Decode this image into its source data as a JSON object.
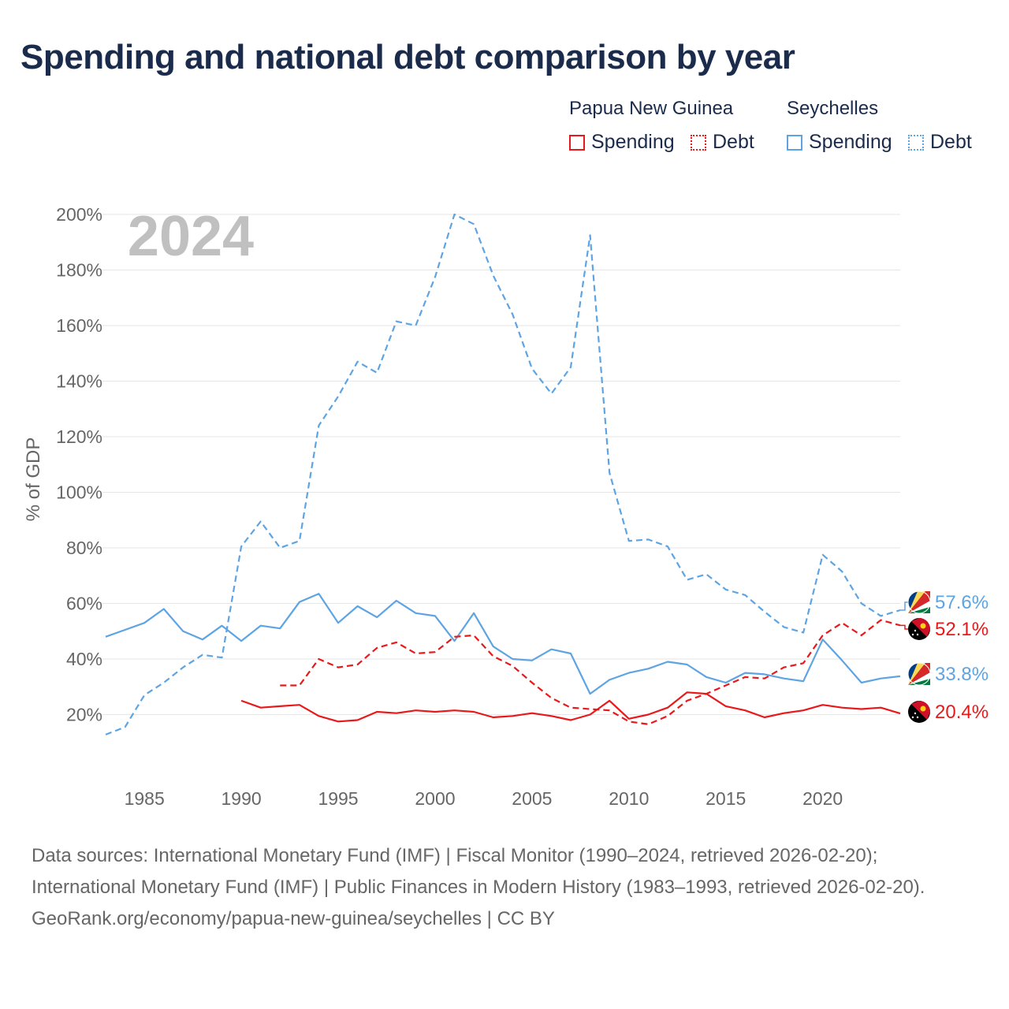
{
  "title": "Spending and national debt comparison by year",
  "legend": {
    "groups": [
      {
        "name": "Papua New Guinea",
        "color": "#e8191a",
        "items": [
          {
            "label": "Spending",
            "style": "solid"
          },
          {
            "label": "Debt",
            "style": "dotted"
          }
        ]
      },
      {
        "name": "Seychelles",
        "color": "#5ea4e3",
        "items": [
          {
            "label": "Spending",
            "style": "solid"
          },
          {
            "label": "Debt",
            "style": "dotted"
          }
        ]
      }
    ]
  },
  "year_label": "2024",
  "footer": {
    "sources": "Data sources: International Monetary Fund (IMF) | Fiscal Monitor (1990–2024, retrieved 2026-02-20); International Monetary Fund (IMF) | Public Finances in Modern History (1983–1993, retrieved 2026-02-20).",
    "attribution": "GeoRank.org/economy/papua-new-guinea/seychelles | CC BY"
  },
  "chart_data": {
    "type": "line",
    "title": "Spending and national debt comparison by year",
    "xlabel": "",
    "ylabel": "% of GDP",
    "xlim": [
      1983,
      2024
    ],
    "ylim": [
      0,
      200
    ],
    "x_ticks": [
      1985,
      1990,
      1995,
      2000,
      2005,
      2010,
      2015,
      2020
    ],
    "y_ticks": [
      20,
      40,
      60,
      80,
      100,
      120,
      140,
      160,
      180,
      200
    ],
    "y_tick_labels": [
      "20%",
      "40%",
      "60%",
      "80%",
      "100%",
      "120%",
      "140%",
      "160%",
      "180%",
      "200%"
    ],
    "grid": true,
    "series": [
      {
        "name": "Seychelles Debt",
        "country": "Seychelles",
        "color": "#5ea4e3",
        "dash": true,
        "end_label": "57.6%",
        "x": [
          1983,
          1984,
          1985,
          1986,
          1987,
          1988,
          1989,
          1990,
          1991,
          1992,
          1993,
          1994,
          1995,
          1996,
          1997,
          1998,
          1999,
          2000,
          2001,
          2002,
          2003,
          2004,
          2005,
          2006,
          2007,
          2008,
          2009,
          2010,
          2011,
          2012,
          2013,
          2014,
          2015,
          2016,
          2017,
          2018,
          2019,
          2020,
          2021,
          2022,
          2023,
          2024
        ],
        "values": [
          12.8,
          15.5,
          27,
          31.5,
          37,
          41.5,
          40.5,
          80.5,
          89.5,
          80,
          82.5,
          124,
          134.5,
          147,
          143,
          161.5,
          160,
          177.5,
          200,
          196.5,
          178,
          164,
          144.5,
          135.5,
          145,
          192.5,
          107,
          82.5,
          83,
          80.5,
          68.5,
          70.5,
          65,
          63,
          57,
          51.5,
          49.5,
          77.5,
          71.5,
          60,
          55.5,
          57.6
        ]
      },
      {
        "name": "Seychelles Spending",
        "country": "Seychelles",
        "color": "#5ea4e3",
        "dash": false,
        "end_label": "33.8%",
        "x": [
          1983,
          1984,
          1985,
          1986,
          1987,
          1988,
          1989,
          1990,
          1991,
          1992,
          1993,
          1994,
          1995,
          1996,
          1997,
          1998,
          1999,
          2000,
          2001,
          2002,
          2003,
          2004,
          2005,
          2006,
          2007,
          2008,
          2009,
          2010,
          2011,
          2012,
          2013,
          2014,
          2015,
          2016,
          2017,
          2018,
          2019,
          2020,
          2021,
          2022,
          2023,
          2024
        ],
        "values": [
          48,
          50.5,
          53,
          58,
          50,
          47,
          52,
          46.5,
          52,
          51,
          60.5,
          63.5,
          53,
          59,
          55,
          61,
          56.5,
          55.5,
          46.5,
          56.5,
          44.5,
          40,
          39.5,
          43.5,
          42,
          27.5,
          32.5,
          35,
          36.5,
          39,
          38,
          33.5,
          31.5,
          35,
          34.5,
          33,
          32,
          47,
          39.5,
          31.5,
          33,
          33.8
        ]
      },
      {
        "name": "Papua New Guinea Debt",
        "country": "Papua New Guinea",
        "color": "#e8191a",
        "dash": true,
        "end_label": "52.1%",
        "x": [
          1992,
          1993,
          1994,
          1995,
          1996,
          1997,
          1998,
          1999,
          2000,
          2001,
          2002,
          2003,
          2004,
          2005,
          2006,
          2007,
          2008,
          2009,
          2010,
          2011,
          2012,
          2013,
          2014,
          2015,
          2016,
          2017,
          2018,
          2019,
          2020,
          2021,
          2022,
          2023,
          2024
        ],
        "values": [
          30.5,
          30.5,
          40,
          37,
          38,
          44,
          46,
          42,
          42.5,
          48,
          48.5,
          41,
          37.5,
          31.5,
          26,
          22.5,
          22,
          21.5,
          17.5,
          16.5,
          19.5,
          25,
          27.5,
          30.5,
          33.5,
          33,
          37,
          38.5,
          48.5,
          53,
          48.5,
          54,
          52.1
        ]
      },
      {
        "name": "Papua New Guinea Spending",
        "country": "Papua New Guinea",
        "color": "#e8191a",
        "dash": false,
        "end_label": "20.4%",
        "x": [
          1990,
          1991,
          1992,
          1993,
          1994,
          1995,
          1996,
          1997,
          1998,
          1999,
          2000,
          2001,
          2002,
          2003,
          2004,
          2005,
          2006,
          2007,
          2008,
          2009,
          2010,
          2011,
          2012,
          2013,
          2014,
          2015,
          2016,
          2017,
          2018,
          2019,
          2020,
          2021,
          2022,
          2023,
          2024
        ],
        "values": [
          25,
          22.5,
          23,
          23.5,
          19.5,
          17.5,
          18,
          21,
          20.5,
          21.5,
          21,
          21.5,
          21,
          19,
          19.5,
          20.5,
          19.5,
          18,
          20,
          25,
          18.5,
          20,
          22.5,
          28,
          27.5,
          23,
          21.5,
          19,
          20.5,
          21.5,
          23.5,
          22.5,
          22,
          22.5,
          20.4
        ]
      }
    ]
  }
}
